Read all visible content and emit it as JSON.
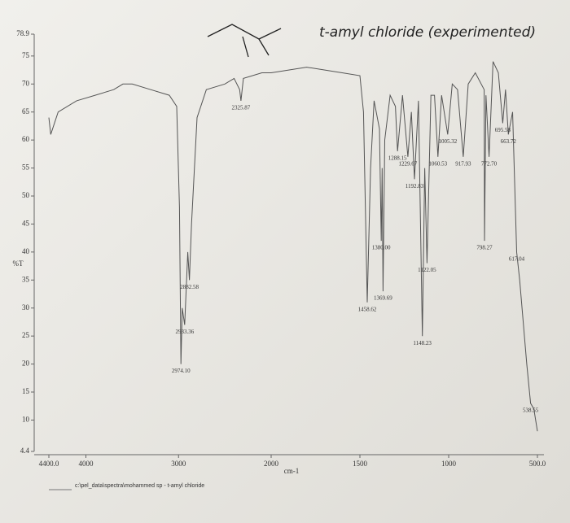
{
  "chart_data": {
    "type": "line",
    "title": "t-amyl chloride (experimented)",
    "x_label": "cm-1",
    "y_label": "%T",
    "footer": "c:\\pel_data\\spectra\\mohammed sp - t-amyl chloride",
    "xlim": [
      4400,
      500
    ],
    "x_scale_break": 2000,
    "xticks": [
      {
        "value": 4400,
        "label": "4400.0"
      },
      4000,
      3000,
      2000,
      1500,
      1000,
      {
        "value": 500,
        "label": "500.0"
      }
    ],
    "ylim": [
      4.4,
      78.9
    ],
    "yticks": [
      4.4,
      10,
      15,
      20,
      25,
      30,
      35,
      40,
      45,
      50,
      55,
      60,
      65,
      70,
      75,
      78.9
    ],
    "series": [
      {
        "color": "#555555",
        "x": [
          4400,
          4380,
          4300,
          4100,
          3900,
          3700,
          3600,
          3500,
          3300,
          3100,
          3020,
          2990,
          2974.1,
          2960,
          2933.36,
          2900,
          2882.58,
          2860,
          2800,
          2700,
          2500,
          2400,
          2340,
          2325.87,
          2300,
          2100,
          2000,
          1800,
          1600,
          1500,
          1480,
          1458.62,
          1440,
          1420,
          1390,
          1380,
          1375,
          1369.69,
          1360,
          1330,
          1300,
          1288.15,
          1260,
          1229.67,
          1210,
          1192.83,
          1170,
          1148.23,
          1135,
          1122.05,
          1100,
          1080,
          1060.53,
          1040,
          1005.32,
          980,
          950,
          917.93,
          890,
          850,
          800,
          798.27,
          790,
          772.7,
          750,
          720,
          695.58,
          680,
          663.72,
          640,
          617.04,
          600,
          560,
          538.55,
          520,
          510,
          500
        ],
        "values": [
          64,
          61,
          65,
          67,
          68,
          69,
          70,
          70,
          69,
          68,
          66,
          48,
          20,
          30,
          27,
          40,
          35,
          45,
          64,
          69,
          70,
          71,
          69,
          67,
          71,
          72,
          72,
          73,
          72,
          71.5,
          65,
          31,
          55,
          67,
          62,
          42,
          55,
          33,
          60,
          68,
          66,
          58,
          68,
          57,
          65,
          53,
          67,
          25,
          55,
          38,
          68,
          68,
          57,
          68,
          61,
          70,
          69,
          57,
          70,
          72,
          69,
          42,
          68,
          57,
          74,
          72,
          63,
          69,
          61,
          65,
          40,
          35,
          20,
          13,
          12,
          10,
          8
        ]
      }
    ],
    "annotations": [
      {
        "value": 2325.87,
        "label": "2325.87",
        "y": 67
      },
      {
        "value": 2882.58,
        "label": "2882.58",
        "y": 35
      },
      {
        "value": 2933.36,
        "label": "2933.36",
        "y": 27
      },
      {
        "value": 2974.1,
        "label": "2974.10",
        "y": 20
      },
      {
        "value": 1458.62,
        "label": "1458.62",
        "y": 31
      },
      {
        "value": 1380.0,
        "label": "1380.00",
        "y": 42
      },
      {
        "value": 1369.69,
        "label": "1369.69",
        "y": 33
      },
      {
        "value": 1288.15,
        "label": "1288.15",
        "y": 58
      },
      {
        "value": 1229.67,
        "label": "1229.67",
        "y": 57
      },
      {
        "value": 1192.83,
        "label": "1192.83",
        "y": 53
      },
      {
        "value": 1148.23,
        "label": "1148.23",
        "y": 25
      },
      {
        "value": 1122.05,
        "label": "1122.05",
        "y": 38
      },
      {
        "value": 1060.53,
        "label": "1060.53",
        "y": 57
      },
      {
        "value": 1005.32,
        "label": "1005.32",
        "y": 61
      },
      {
        "value": 917.93,
        "label": "917.93",
        "y": 57
      },
      {
        "value": 798.27,
        "label": "798.27",
        "y": 42
      },
      {
        "value": 772.7,
        "label": "772.70",
        "y": 57
      },
      {
        "value": 695.58,
        "label": "695.58",
        "y": 63
      },
      {
        "value": 663.72,
        "label": "663.72",
        "y": 61
      },
      {
        "value": 617.04,
        "label": "617.04",
        "y": 40
      },
      {
        "value": 538.55,
        "label": "538.55",
        "y": 13
      }
    ]
  }
}
